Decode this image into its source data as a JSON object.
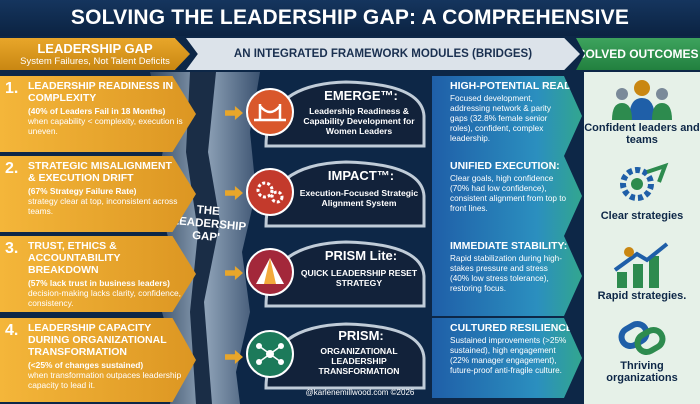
{
  "title": "SOLVING THE LEADERSHIP GAP: A COMPREHENSIVE ECOSYSTEM.",
  "header": {
    "left_title": "LEADERSHIP GAP",
    "left_sub": "System Failures, Not Talent Deficits",
    "middle": "AN INTEGRATED FRAMEWORK MODULES (BRIDGES)",
    "right": "SOLVED OUTCOMES"
  },
  "chasm_label": "THE LEADERSHIP GAP'",
  "gaps": [
    {
      "num": "1.",
      "heading": "LEADERSHIP READINESS IN COMPLEXITY",
      "stat": "(40% of Leaders Fail in 18 Months)",
      "desc": "when capability < complexity, execution is uneven."
    },
    {
      "num": "2.",
      "heading": "STRATEGIC MISALIGNMENT & EXECUTION DRIFT",
      "stat": "(67% Strategy Failure Rate)",
      "desc": "strategy clear at top, inconsistent across teams."
    },
    {
      "num": "3.",
      "heading": "TRUST, ETHICS & ACCOUNTABILITY BREAKDOWN",
      "stat": "(57% lack trust in business leaders)",
      "desc": "decision-making lacks clarity, confidence, consistency."
    },
    {
      "num": "4.",
      "heading": "LEADERSHIP CAPACITY DURING ORGANIZATIONAL TRANSFORMATION",
      "stat": "(<25% of changes sustained)",
      "desc": "when transformation outpaces leadership capacity to lead it."
    }
  ],
  "modules": [
    {
      "title": "EMERGE™:",
      "sub": "Leadership Readiness & Capability Development for Women Leaders",
      "icon": "bridge-icon",
      "color": "#d9572b"
    },
    {
      "title": "IMPACT™:",
      "sub": "Execution-Focused Strategic Alignment System",
      "icon": "gears-icon",
      "color": "#c33a2c"
    },
    {
      "title": "PRISM Lite:",
      "sub": "QUICK LEADERSHIP RESET STRATEGY",
      "icon": "prism-icon",
      "color": "#a3283a"
    },
    {
      "title": "PRISM:",
      "sub": "ORGANIZATIONAL LEADERSHIP TRANSFORMATION",
      "icon": "network-icon",
      "color": "#1c7a5a"
    }
  ],
  "results": [
    {
      "heading": "HIGH-POTENTIAL READY:",
      "desc": "Focused development, addressing network & parity gaps (32.8% female senior roles), confident, complex leadership."
    },
    {
      "heading": "UNIFIED EXECUTION:",
      "desc": "Clear goals, high confidence (70% had low confidence), consistent alignment from top to front lines."
    },
    {
      "heading": "IMMEDIATE STABILITY:",
      "desc": "Rapid stabilization during high-stakes pressure and stress (40% low stress tolerance), restoring focus."
    },
    {
      "heading": "CULTURED RESILIENCE:",
      "desc": "Sustained improvements (>25% sustained), high engagement (22% manager engagement), future-proof anti-fragile culture."
    }
  ],
  "outcomes": [
    {
      "label": "Confident leaders and teams",
      "icon": "team-icon"
    },
    {
      "label": "Clear strategies",
      "icon": "gear-target-icon"
    },
    {
      "label": "Rapid strategies.",
      "icon": "growth-icon"
    },
    {
      "label": "Thriving organizations",
      "icon": "chain-link-icon"
    }
  ],
  "footer": "@karlenemillwood.com ©2026"
}
